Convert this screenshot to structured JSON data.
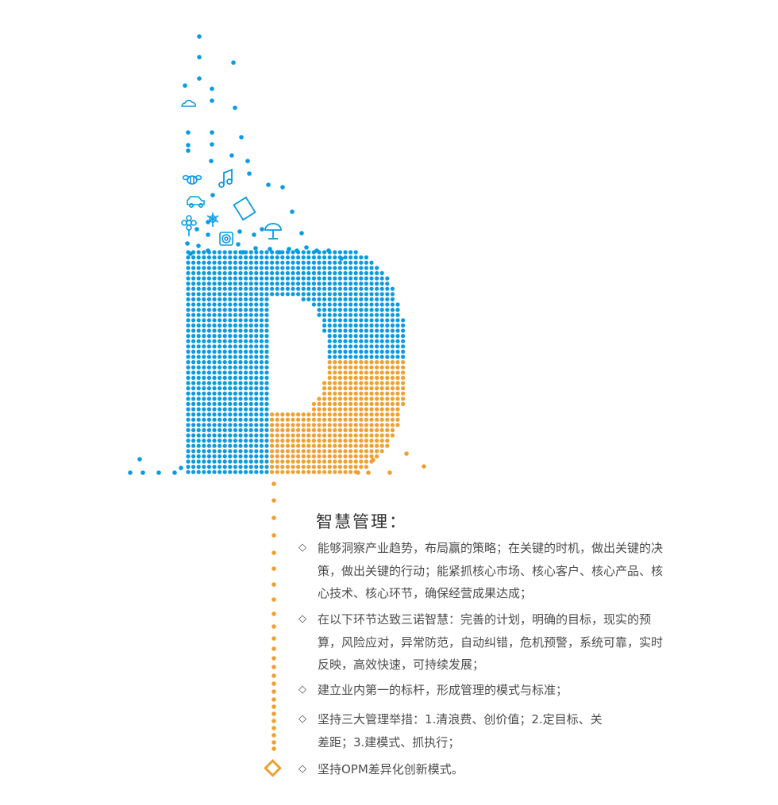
{
  "colors": {
    "blue": "#0a9be2",
    "orange": "#f0a030"
  },
  "icons": [
    "cloud-icon",
    "bee-icon",
    "music-note-icon",
    "car-icon",
    "book-icon",
    "flower-icon",
    "snowflake-icon",
    "target-icon",
    "umbrella-icon",
    "diamond-icon"
  ],
  "title": "智慧管理：",
  "items": [
    {
      "bullet": "◇",
      "text": "能够洞察产业趋势，布局赢的策略；在关键的时机，做出关键的决策，做出关键的行动；能紧抓核心市场、核心客户、核心产品、核心技术、核心环节，确保经营成果达成；"
    },
    {
      "bullet": "◇",
      "text": "在以下环节达致三诺智慧：完善的计划，明确的目标，现实的预算，风险应对，异常防范，自动纠错，危机预警，系统可靠，实时反映，高效快速，可持续发展；"
    },
    {
      "bullet": "◇",
      "text": "建立业内第一的标杆，形成管理的模式与标准；"
    },
    {
      "bullet": "◇",
      "text": "坚持三大管理举措：1.清浪费、创价值；2.定目标、关差距；3.建模式、抓执行；"
    },
    {
      "bullet": "◇",
      "text": "坚持OPM差异化创新模式。"
    }
  ]
}
